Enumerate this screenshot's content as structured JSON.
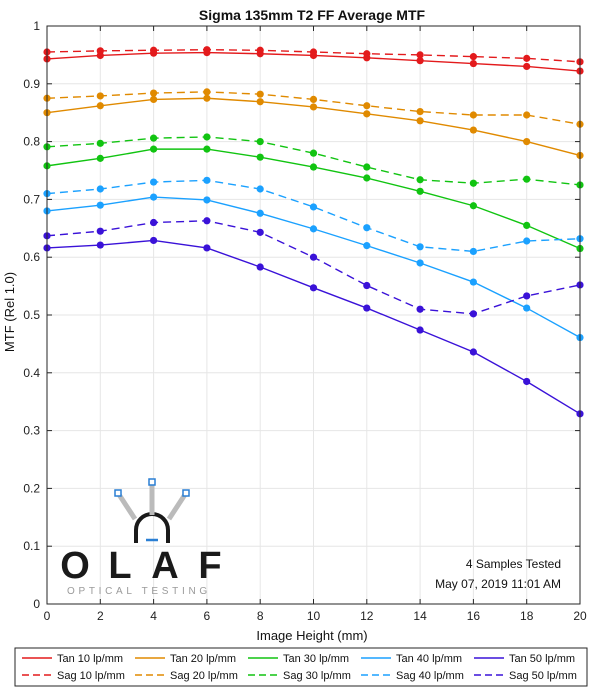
{
  "chart_data": {
    "type": "line",
    "title": "Sigma 135mm T2 FF Average MTF",
    "xlabel": "Image Height (mm)",
    "ylabel": "MTF (Rel 1.0)",
    "xlim": [
      0,
      20
    ],
    "ylim": [
      0,
      1
    ],
    "x": [
      0,
      2,
      4,
      6,
      8,
      10,
      12,
      14,
      16,
      18,
      20
    ],
    "xticks": [
      "0",
      "2",
      "4",
      "6",
      "8",
      "10",
      "12",
      "14",
      "16",
      "18",
      "20"
    ],
    "yticks": [
      "0",
      "0.1",
      "0.2",
      "0.3",
      "0.4",
      "0.5",
      "0.6",
      "0.7",
      "0.8",
      "0.9",
      "1"
    ],
    "grid": true,
    "legend_position": "bottom",
    "series": [
      {
        "name": "Tan 10 lp/mm",
        "color": "#e31a1c",
        "style": "solid",
        "values": [
          0.943,
          0.949,
          0.953,
          0.954,
          0.952,
          0.949,
          0.945,
          0.94,
          0.935,
          0.93,
          0.922
        ]
      },
      {
        "name": "Sag 10 lp/mm",
        "color": "#e31a1c",
        "style": "dashed",
        "values": [
          0.955,
          0.957,
          0.958,
          0.959,
          0.958,
          0.955,
          0.952,
          0.95,
          0.947,
          0.944,
          0.938
        ]
      },
      {
        "name": "Tan 20 lp/mm",
        "color": "#e08a00",
        "style": "solid",
        "values": [
          0.85,
          0.862,
          0.873,
          0.875,
          0.869,
          0.86,
          0.848,
          0.836,
          0.82,
          0.8,
          0.776
        ]
      },
      {
        "name": "Sag 20 lp/mm",
        "color": "#e08a00",
        "style": "dashed",
        "values": [
          0.875,
          0.879,
          0.884,
          0.886,
          0.882,
          0.873,
          0.862,
          0.852,
          0.846,
          0.846,
          0.83
        ]
      },
      {
        "name": "Tan 30 lp/mm",
        "color": "#11c411",
        "style": "solid",
        "values": [
          0.758,
          0.771,
          0.787,
          0.787,
          0.773,
          0.756,
          0.737,
          0.714,
          0.689,
          0.655,
          0.615
        ]
      },
      {
        "name": "Sag 30 lp/mm",
        "color": "#11c411",
        "style": "dashed",
        "values": [
          0.791,
          0.797,
          0.806,
          0.808,
          0.8,
          0.78,
          0.756,
          0.734,
          0.728,
          0.735,
          0.725
        ]
      },
      {
        "name": "Tan 40 lp/mm",
        "color": "#1ba1ff",
        "style": "solid",
        "values": [
          0.68,
          0.69,
          0.704,
          0.699,
          0.676,
          0.649,
          0.62,
          0.59,
          0.557,
          0.512,
          0.461
        ]
      },
      {
        "name": "Sag 40 lp/mm",
        "color": "#1ba1ff",
        "style": "dashed",
        "values": [
          0.71,
          0.718,
          0.73,
          0.733,
          0.718,
          0.687,
          0.651,
          0.618,
          0.61,
          0.628,
          0.632
        ]
      },
      {
        "name": "Tan 50 lp/mm",
        "color": "#3a12d8",
        "style": "solid",
        "values": [
          0.616,
          0.621,
          0.629,
          0.616,
          0.583,
          0.547,
          0.512,
          0.474,
          0.436,
          0.385,
          0.329
        ]
      },
      {
        "name": "Sag 50 lp/mm",
        "color": "#3a12d8",
        "style": "dashed",
        "values": [
          0.637,
          0.645,
          0.66,
          0.663,
          0.643,
          0.6,
          0.551,
          0.51,
          0.502,
          0.533,
          0.552
        ]
      }
    ],
    "annotations": [
      "4 Samples Tested",
      "May 07, 2019 11:01 AM"
    ]
  },
  "logo": {
    "letters": [
      "O",
      "L",
      "A",
      "F"
    ],
    "subtitle": "OPTICAL TESTING"
  },
  "colors": {
    "grid": "#e6e6e6",
    "axis": "#262626",
    "logo_dark": "#1a1a1a",
    "logo_blue": "#2a7fd4",
    "logo_gray": "#bbbbbb"
  }
}
